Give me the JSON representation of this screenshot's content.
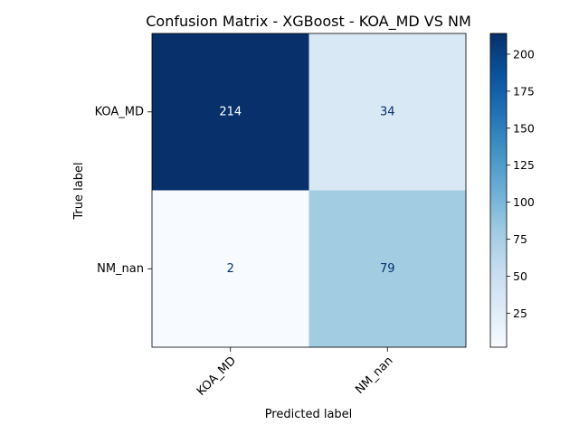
{
  "chart_data": {
    "type": "heatmap",
    "title": "Confusion Matrix - XGBoost - KOA_MD VS NM",
    "xlabel": "Predicted label",
    "ylabel": "True label",
    "x_categories": [
      "KOA_MD",
      "NM_nan"
    ],
    "y_categories": [
      "KOA_MD",
      "NM_nan"
    ],
    "matrix": [
      [
        214,
        34
      ],
      [
        2,
        79
      ]
    ],
    "colormap": "Blues",
    "color_range": [
      2,
      214
    ],
    "colorbar_ticks": [
      25,
      50,
      75,
      100,
      125,
      150,
      175,
      200
    ],
    "colors": {
      "light_text": "#ffffff",
      "dark_text": "#08306b"
    }
  }
}
